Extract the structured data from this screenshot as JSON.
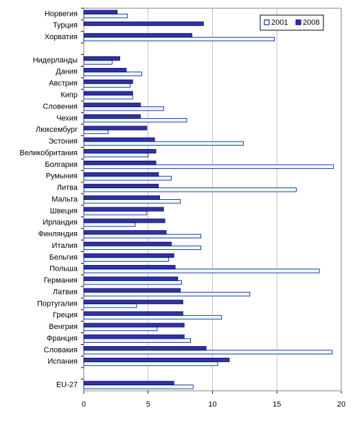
{
  "chart_data": {
    "type": "hbar",
    "categories": [
      "Норвегия",
      "Турция",
      "Хорватия",
      null,
      "Нидерланды",
      "Дания",
      "Австрия",
      "Кипр",
      "Словения",
      "Чехия",
      "Люксембург",
      "Эстония",
      "Великобритания",
      "Болгария",
      "Румыния",
      "Литва",
      "Мальта",
      "Швеция",
      "Ирландия",
      "Финляндия",
      "Италия",
      "Бельгия",
      "Польша",
      "Германия",
      "Латвия",
      "Португалия",
      "Греция",
      "Венгрия",
      "Франция",
      "Словакия",
      "Испания",
      null,
      "EU-27"
    ],
    "series": [
      {
        "name": "2001",
        "color": "#e6ffff",
        "values": [
          3.4,
          null,
          14.8,
          null,
          2.2,
          4.5,
          3.6,
          3.8,
          6.2,
          8.0,
          1.9,
          12.4,
          5.0,
          19.4,
          6.8,
          16.5,
          7.5,
          4.9,
          4.0,
          9.1,
          9.1,
          6.6,
          18.3,
          7.6,
          12.9,
          4.1,
          10.7,
          5.7,
          8.3,
          19.3,
          10.4,
          null,
          8.5
        ]
      },
      {
        "name": "2008",
        "color": "#333399",
        "values": [
          2.6,
          9.3,
          8.4,
          null,
          2.8,
          3.3,
          3.8,
          3.8,
          4.4,
          4.4,
          4.9,
          5.5,
          5.6,
          5.6,
          5.8,
          5.8,
          5.9,
          6.2,
          6.3,
          6.4,
          6.8,
          7.0,
          7.1,
          7.3,
          7.5,
          7.7,
          7.7,
          7.8,
          7.8,
          9.5,
          11.3,
          null,
          7.0
        ]
      }
    ],
    "xlim": [
      0,
      20
    ],
    "xticks": [
      0,
      5,
      10,
      15,
      20
    ],
    "grid": true,
    "legend": "top-right"
  }
}
